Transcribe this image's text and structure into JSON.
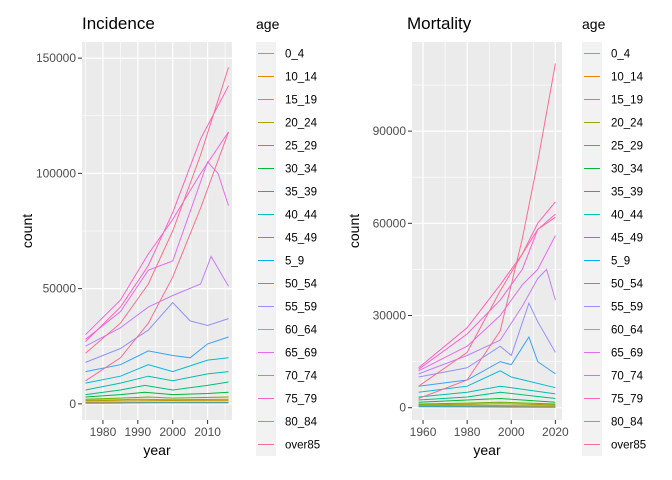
{
  "chart_data": [
    {
      "type": "line",
      "title": "Incidence",
      "xlabel": "year",
      "ylabel": "count",
      "xlim": [
        1974,
        2017
      ],
      "ylim": [
        -7000,
        157000
      ],
      "x_ticks": [
        1980,
        1990,
        2000,
        2010
      ],
      "y_ticks": [
        0,
        50000,
        100000,
        150000
      ],
      "x_tick_labels": [
        "1980",
        "1990",
        "2000",
        "2010"
      ],
      "y_tick_labels": [
        "0",
        "50000",
        "100000",
        "150000"
      ],
      "legend_title": "age",
      "legend_position": "right",
      "background": "#ebebeb",
      "grid": true,
      "series": [
        {
          "name": "0_4",
          "color": "#F8766D",
          "points": [
            [
              1975,
              600
            ],
            [
              1985,
              650
            ],
            [
              1995,
              700
            ],
            [
              2005,
              750
            ],
            [
              2016,
              700
            ]
          ]
        },
        {
          "name": "10_14",
          "color": "#E58700",
          "points": [
            [
              1975,
              500
            ],
            [
              1985,
              550
            ],
            [
              1995,
              600
            ],
            [
              2005,
              650
            ],
            [
              2016,
              650
            ]
          ]
        },
        {
          "name": "15_19",
          "color": "#C99800",
          "points": [
            [
              1975,
              1200
            ],
            [
              1985,
              1300
            ],
            [
              1995,
              1400
            ],
            [
              2005,
              1500
            ],
            [
              2016,
              1500
            ]
          ]
        },
        {
          "name": "20_24",
          "color": "#A3A500",
          "points": [
            [
              1975,
              1500
            ],
            [
              1985,
              1800
            ],
            [
              1990,
              2000
            ],
            [
              2000,
              1800
            ],
            [
              2016,
              2000
            ]
          ]
        },
        {
          "name": "25_29",
          "color": "#6BB100",
          "points": [
            [
              1975,
              2000
            ],
            [
              1985,
              2500
            ],
            [
              1993,
              3000
            ],
            [
              2000,
              2500
            ],
            [
              2016,
              3000
            ]
          ]
        },
        {
          "name": "30_34",
          "color": "#00BA38",
          "points": [
            [
              1975,
              3000
            ],
            [
              1985,
              4000
            ],
            [
              1992,
              5000
            ],
            [
              2000,
              4000
            ],
            [
              2010,
              4500
            ],
            [
              2016,
              5000
            ]
          ]
        },
        {
          "name": "35_39",
          "color": "#00BF7D",
          "points": [
            [
              1975,
              4000
            ],
            [
              1985,
              6000
            ],
            [
              1992,
              8000
            ],
            [
              2000,
              6000
            ],
            [
              2010,
              8000
            ],
            [
              2016,
              9500
            ]
          ]
        },
        {
          "name": "40_44",
          "color": "#00C0AF",
          "points": [
            [
              1975,
              6000
            ],
            [
              1985,
              9000
            ],
            [
              1993,
              12000
            ],
            [
              2000,
              10000
            ],
            [
              2010,
              13000
            ],
            [
              2016,
              14000
            ]
          ]
        },
        {
          "name": "45_49",
          "color": "#00BCD8",
          "points": [
            [
              1975,
              9000
            ],
            [
              1985,
              12000
            ],
            [
              1993,
              17000
            ],
            [
              2000,
              14000
            ],
            [
              2010,
              19000
            ],
            [
              2016,
              20000
            ]
          ]
        },
        {
          "name": "5_9",
          "color": "#00B0F6",
          "points": [
            [
              1975,
              300
            ],
            [
              1985,
              350
            ],
            [
              1995,
              400
            ],
            [
              2005,
              400
            ],
            [
              2016,
              400
            ]
          ]
        },
        {
          "name": "50_54",
          "color": "#35A2FF",
          "points": [
            [
              1975,
              14000
            ],
            [
              1985,
              17000
            ],
            [
              1993,
              23000
            ],
            [
              2000,
              21000
            ],
            [
              2005,
              20000
            ],
            [
              2010,
              26000
            ],
            [
              2016,
              29000
            ]
          ]
        },
        {
          "name": "55_59",
          "color": "#9590FF",
          "points": [
            [
              1975,
              18000
            ],
            [
              1985,
              24000
            ],
            [
              1993,
              32000
            ],
            [
              2000,
              44000
            ],
            [
              2005,
              36000
            ],
            [
              2010,
              34000
            ],
            [
              2016,
              37000
            ]
          ]
        },
        {
          "name": "60_64",
          "color": "#C77CFF",
          "points": [
            [
              1975,
              25000
            ],
            [
              1985,
              33000
            ],
            [
              1993,
              42000
            ],
            [
              2000,
              47000
            ],
            [
              2008,
              52000
            ],
            [
              2011,
              64000
            ],
            [
              2016,
              51000
            ]
          ]
        },
        {
          "name": "65_69",
          "color": "#E76BF3",
          "points": [
            [
              1975,
              28000
            ],
            [
              1985,
              40000
            ],
            [
              1993,
              58000
            ],
            [
              2000,
              62000
            ],
            [
              2010,
              105000
            ],
            [
              2013,
              100000
            ],
            [
              2016,
              86000
            ]
          ]
        },
        {
          "name": "70_74",
          "color": "#FA62DB",
          "points": [
            [
              1975,
              30000
            ],
            [
              1985,
              45000
            ],
            [
              1993,
              65000
            ],
            [
              2000,
              80000
            ],
            [
              2008,
              100000
            ],
            [
              2016,
              118000
            ]
          ]
        },
        {
          "name": "75_79",
          "color": "#FF62BC",
          "points": [
            [
              1975,
              27000
            ],
            [
              1985,
              42000
            ],
            [
              1993,
              60000
            ],
            [
              2000,
              83000
            ],
            [
              2008,
              115000
            ],
            [
              2016,
              138000
            ]
          ]
        },
        {
          "name": "80_84",
          "color": "#FF6C91",
          "points": [
            [
              1975,
              22000
            ],
            [
              1985,
              35000
            ],
            [
              1993,
              52000
            ],
            [
              2000,
              75000
            ],
            [
              2008,
              108000
            ],
            [
              2016,
              146000
            ]
          ]
        },
        {
          "name": "over85",
          "color": "#FF6C91",
          "points": [
            [
              1975,
              10000
            ],
            [
              1985,
              20000
            ],
            [
              1993,
              35000
            ],
            [
              2000,
              55000
            ],
            [
              2008,
              85000
            ],
            [
              2016,
              118000
            ]
          ]
        }
      ]
    },
    {
      "type": "line",
      "title": "Mortality",
      "xlabel": "year",
      "ylabel": "count",
      "xlim": [
        1955,
        2023
      ],
      "ylim": [
        -4000,
        119000
      ],
      "x_ticks": [
        1960,
        1980,
        2000,
        2020
      ],
      "y_ticks": [
        0,
        30000,
        60000,
        90000
      ],
      "x_tick_labels": [
        "1960",
        "1980",
        "2000",
        "2020"
      ],
      "y_tick_labels": [
        "0",
        "30000",
        "60000",
        "90000"
      ],
      "legend_title": "age",
      "legend_position": "right",
      "background": "#ebebeb",
      "grid": true,
      "series": [
        {
          "name": "0_4",
          "color": "#F8766D",
          "points": [
            [
              1958,
              500
            ],
            [
              1980,
              450
            ],
            [
              2000,
              400
            ],
            [
              2020,
              300
            ]
          ]
        },
        {
          "name": "10_14",
          "color": "#E58700",
          "points": [
            [
              1958,
              400
            ],
            [
              1980,
              350
            ],
            [
              2000,
              300
            ],
            [
              2020,
              250
            ]
          ]
        },
        {
          "name": "15_19",
          "color": "#C99800",
          "points": [
            [
              1958,
              700
            ],
            [
              1980,
              800
            ],
            [
              2000,
              700
            ],
            [
              2020,
              600
            ]
          ]
        },
        {
          "name": "20_24",
          "color": "#A3A500",
          "points": [
            [
              1958,
              900
            ],
            [
              1980,
              1100
            ],
            [
              1995,
              1300
            ],
            [
              2020,
              900
            ]
          ]
        },
        {
          "name": "25_29",
          "color": "#6BB100",
          "points": [
            [
              1958,
              1200
            ],
            [
              1980,
              1500
            ],
            [
              1995,
              1800
            ],
            [
              2020,
              1200
            ]
          ]
        },
        {
          "name": "30_34",
          "color": "#00BA38",
          "points": [
            [
              1958,
              1800
            ],
            [
              1980,
              2500
            ],
            [
              1995,
              3000
            ],
            [
              2020,
              1800
            ]
          ]
        },
        {
          "name": "35_39",
          "color": "#00BF7D",
          "points": [
            [
              1958,
              2500
            ],
            [
              1980,
              3500
            ],
            [
              1995,
              5000
            ],
            [
              2020,
              3000
            ]
          ]
        },
        {
          "name": "40_44",
          "color": "#00C0AF",
          "points": [
            [
              1958,
              3500
            ],
            [
              1980,
              5000
            ],
            [
              1995,
              7000
            ],
            [
              2020,
              4500
            ]
          ]
        },
        {
          "name": "45_49",
          "color": "#00BCD8",
          "points": [
            [
              1958,
              5000
            ],
            [
              1980,
              7000
            ],
            [
              1995,
              12000
            ],
            [
              2000,
              10000
            ],
            [
              2020,
              6500
            ]
          ]
        },
        {
          "name": "5_9",
          "color": "#00B0F6",
          "points": [
            [
              1958,
              300
            ],
            [
              1980,
              250
            ],
            [
              2000,
              200
            ],
            [
              2020,
              150
            ]
          ]
        },
        {
          "name": "50_54",
          "color": "#35A2FF",
          "points": [
            [
              1958,
              7000
            ],
            [
              1980,
              9000
            ],
            [
              1995,
              15000
            ],
            [
              2000,
              14000
            ],
            [
              2008,
              23000
            ],
            [
              2012,
              15000
            ],
            [
              2020,
              11000
            ]
          ]
        },
        {
          "name": "55_59",
          "color": "#9590FF",
          "points": [
            [
              1958,
              10000
            ],
            [
              1980,
              13000
            ],
            [
              1995,
              20000
            ],
            [
              2000,
              17000
            ],
            [
              2008,
              34000
            ],
            [
              2012,
              28000
            ],
            [
              2020,
              18000
            ]
          ]
        },
        {
          "name": "60_64",
          "color": "#C77CFF",
          "points": [
            [
              1958,
              11000
            ],
            [
              1980,
              17000
            ],
            [
              1995,
              22000
            ],
            [
              2005,
              33000
            ],
            [
              2012,
              42000
            ],
            [
              2016,
              45000
            ],
            [
              2020,
              35000
            ]
          ]
        },
        {
          "name": "65_69",
          "color": "#E76BF3",
          "points": [
            [
              1958,
              12000
            ],
            [
              1980,
              20000
            ],
            [
              1995,
              30000
            ],
            [
              2005,
              40000
            ],
            [
              2012,
              45000
            ],
            [
              2020,
              56000
            ]
          ]
        },
        {
          "name": "70_74",
          "color": "#FA62DB",
          "points": [
            [
              1958,
              12500
            ],
            [
              1980,
              24000
            ],
            [
              1995,
              35000
            ],
            [
              2005,
              45000
            ],
            [
              2012,
              58000
            ],
            [
              2020,
              63000
            ]
          ]
        },
        {
          "name": "75_79",
          "color": "#FF62BC",
          "points": [
            [
              1958,
              13000
            ],
            [
              1980,
              26000
            ],
            [
              1995,
              40000
            ],
            [
              2005,
              50000
            ],
            [
              2012,
              60000
            ],
            [
              2020,
              67000
            ]
          ]
        },
        {
          "name": "80_84",
          "color": "#FF6C91",
          "points": [
            [
              1958,
              7000
            ],
            [
              1980,
              18000
            ],
            [
              1995,
              38000
            ],
            [
              2005,
              50000
            ],
            [
              2012,
              58000
            ],
            [
              2020,
              62000
            ]
          ]
        },
        {
          "name": "over85",
          "color": "#FF6C91",
          "points": [
            [
              1958,
              3000
            ],
            [
              1980,
              9000
            ],
            [
              1995,
              25000
            ],
            [
              2005,
              55000
            ],
            [
              2012,
              80000
            ],
            [
              2020,
              112000
            ]
          ]
        }
      ]
    }
  ]
}
